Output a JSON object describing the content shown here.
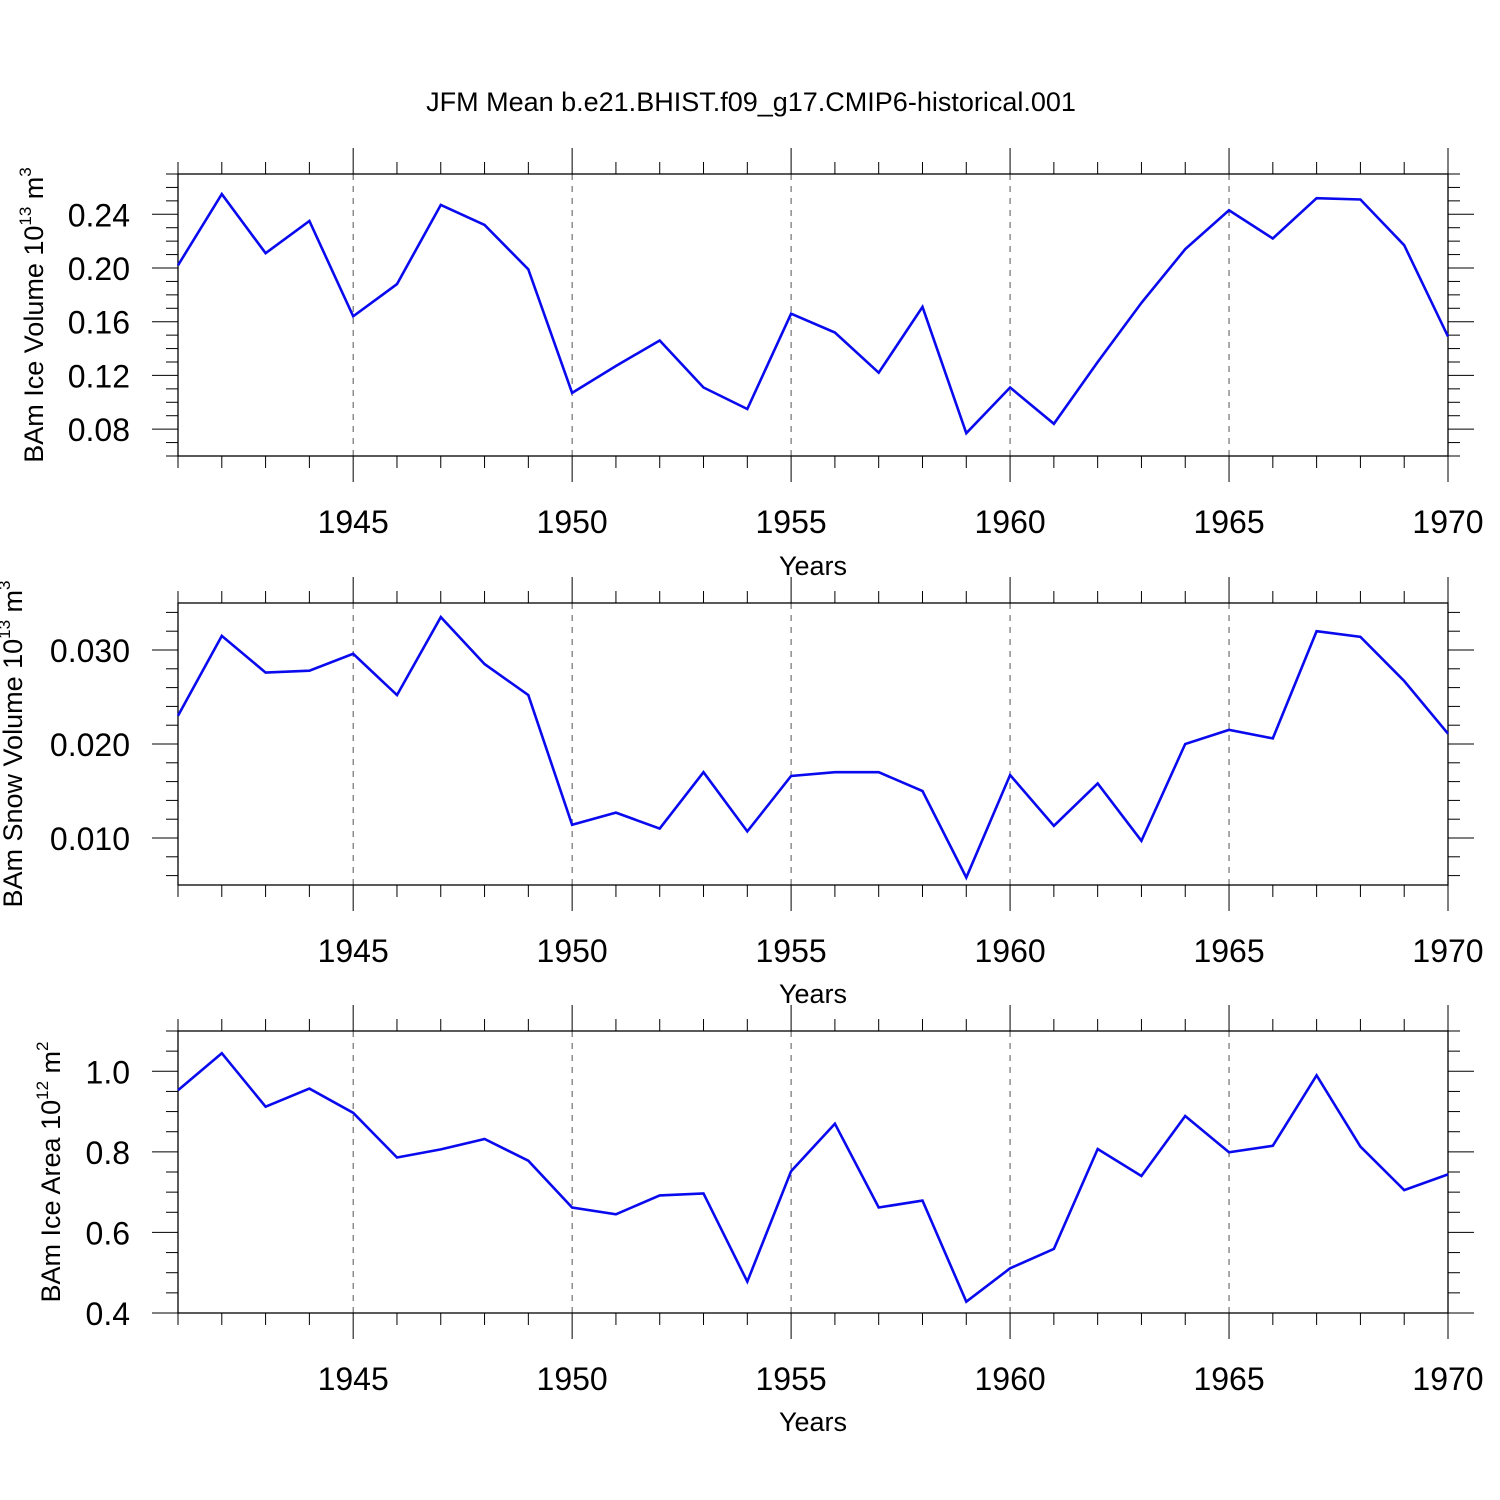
{
  "title": "JFM Mean b.e21.BHIST.f09_g17.CMIP6-historical.001",
  "colors": {
    "line": "#0a0aee",
    "axis": "#000000",
    "grid": "#555555"
  },
  "chart_data": [
    {
      "type": "line",
      "ylabel_main": "BAm Ice Volume 10",
      "ylabel_exp": "13",
      "ylabel_unit": " m",
      "ylabel_unit_exp": "3",
      "xlabel": "Years",
      "xlim": [
        1941,
        1970
      ],
      "ylim": [
        0.06,
        0.27
      ],
      "yticks": [
        0.08,
        0.12,
        0.16,
        0.2,
        0.24
      ],
      "ytick_labels": [
        "0.08",
        "0.12",
        "0.16",
        "0.20",
        "0.24"
      ],
      "ytick_minor_step": 0.01,
      "xticks": [
        1945,
        1950,
        1955,
        1960,
        1965,
        1970
      ],
      "xtick_labels": [
        "1945",
        "1950",
        "1955",
        "1960",
        "1965",
        "1970"
      ],
      "grid": "vertical dashed at major x ticks",
      "x": [
        1941,
        1942,
        1943,
        1944,
        1945,
        1946,
        1947,
        1948,
        1949,
        1950,
        1951,
        1952,
        1953,
        1954,
        1955,
        1956,
        1957,
        1958,
        1959,
        1960,
        1961,
        1962,
        1963,
        1964,
        1965,
        1966,
        1967,
        1968,
        1969,
        1970
      ],
      "series": [
        {
          "values": [
            0.202,
            0.255,
            0.211,
            0.235,
            0.164,
            0.188,
            0.247,
            0.232,
            0.199,
            0.107,
            0.127,
            0.146,
            0.111,
            0.095,
            0.166,
            0.152,
            0.122,
            0.171,
            0.077,
            0.111,
            0.084,
            0.13,
            0.174,
            0.214,
            0.243,
            0.222,
            0.252,
            0.251,
            0.217,
            0.149
          ]
        }
      ]
    },
    {
      "type": "line",
      "ylabel_main": "BAm Snow Volume 10",
      "ylabel_exp": "13",
      "ylabel_unit": " m",
      "ylabel_unit_exp": "3",
      "xlabel": "Years",
      "xlim": [
        1941,
        1970
      ],
      "ylim": [
        0.005,
        0.035
      ],
      "yticks": [
        0.01,
        0.02,
        0.03
      ],
      "ytick_labels": [
        "0.010",
        "0.020",
        "0.030"
      ],
      "ytick_minor_step": 0.002,
      "xticks": [
        1945,
        1950,
        1955,
        1960,
        1965,
        1970
      ],
      "xtick_labels": [
        "1945",
        "1950",
        "1955",
        "1960",
        "1965",
        "1970"
      ],
      "grid": "vertical dashed at major x ticks",
      "x": [
        1941,
        1942,
        1943,
        1944,
        1945,
        1946,
        1947,
        1948,
        1949,
        1950,
        1951,
        1952,
        1953,
        1954,
        1955,
        1956,
        1957,
        1958,
        1959,
        1960,
        1961,
        1962,
        1963,
        1964,
        1965,
        1966,
        1967,
        1968,
        1969,
        1970
      ],
      "series": [
        {
          "values": [
            0.023,
            0.0315,
            0.0276,
            0.0278,
            0.0296,
            0.0252,
            0.0335,
            0.0285,
            0.0252,
            0.0114,
            0.0127,
            0.011,
            0.017,
            0.0107,
            0.0166,
            0.017,
            0.017,
            0.015,
            0.0058,
            0.0167,
            0.0113,
            0.0158,
            0.0097,
            0.02,
            0.0215,
            0.0206,
            0.032,
            0.0314,
            0.0267,
            0.0211
          ]
        }
      ]
    },
    {
      "type": "line",
      "ylabel_main": "BAm Ice Area 10",
      "ylabel_exp": "12",
      "ylabel_unit": " m",
      "ylabel_unit_exp": "2",
      "xlabel": "Years",
      "xlim": [
        1941,
        1970
      ],
      "ylim": [
        0.4,
        1.1
      ],
      "yticks": [
        0.4,
        0.6,
        0.8,
        1.0
      ],
      "ytick_labels": [
        "0.4",
        "0.6",
        "0.8",
        "1.0"
      ],
      "ytick_minor_step": 0.05,
      "xticks": [
        1945,
        1950,
        1955,
        1960,
        1965,
        1970
      ],
      "xtick_labels": [
        "1945",
        "1950",
        "1955",
        "1960",
        "1965",
        "1970"
      ],
      "grid": "vertical dashed at major x ticks",
      "x": [
        1941,
        1942,
        1943,
        1944,
        1945,
        1946,
        1947,
        1948,
        1949,
        1950,
        1951,
        1952,
        1953,
        1954,
        1955,
        1956,
        1957,
        1958,
        1959,
        1960,
        1961,
        1962,
        1963,
        1964,
        1965,
        1966,
        1967,
        1968,
        1969,
        1970
      ],
      "series": [
        {
          "values": [
            0.953,
            1.045,
            0.912,
            0.957,
            0.897,
            0.786,
            0.806,
            0.832,
            0.778,
            0.662,
            0.645,
            0.692,
            0.697,
            0.478,
            0.752,
            0.87,
            0.662,
            0.679,
            0.428,
            0.511,
            0.559,
            0.807,
            0.74,
            0.889,
            0.799,
            0.815,
            0.99,
            0.813,
            0.705,
            0.744
          ]
        }
      ]
    }
  ]
}
